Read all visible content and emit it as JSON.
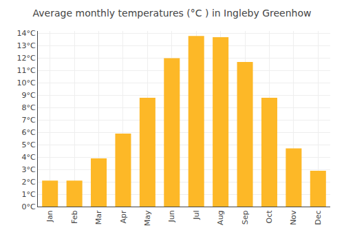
{
  "chart_data": {
    "type": "bar",
    "title": "Average monthly temperatures (°C ) in Ingleby Greenhow",
    "categories": [
      "Jan",
      "Feb",
      "Mar",
      "Apr",
      "May",
      "Jun",
      "Jul",
      "Aug",
      "Sep",
      "Oct",
      "Nov",
      "Dec"
    ],
    "values": [
      2.1,
      2.1,
      3.9,
      5.9,
      8.8,
      12.0,
      13.8,
      13.7,
      11.7,
      8.8,
      4.7,
      2.9
    ],
    "color": "#FDB827",
    "ylim": [
      0,
      14.2
    ],
    "yticks": [
      {
        "value": 0,
        "label": "0°C"
      },
      {
        "value": 1,
        "label": "1°C"
      },
      {
        "value": 2,
        "label": "2°C"
      },
      {
        "value": 3,
        "label": "3°C"
      },
      {
        "value": 4,
        "label": "4°C"
      },
      {
        "value": 5,
        "label": "5°C"
      },
      {
        "value": 6,
        "label": "6°C"
      },
      {
        "value": 7,
        "label": "7°C"
      },
      {
        "value": 8,
        "label": "8°C"
      },
      {
        "value": 9,
        "label": "9°C"
      },
      {
        "value": 10,
        "label": "10°C"
      },
      {
        "value": 11,
        "label": "11°C"
      },
      {
        "value": 12,
        "label": "12°C"
      },
      {
        "value": 13,
        "label": "13°C"
      },
      {
        "value": 14,
        "label": "14°C"
      }
    ],
    "grid": true
  }
}
